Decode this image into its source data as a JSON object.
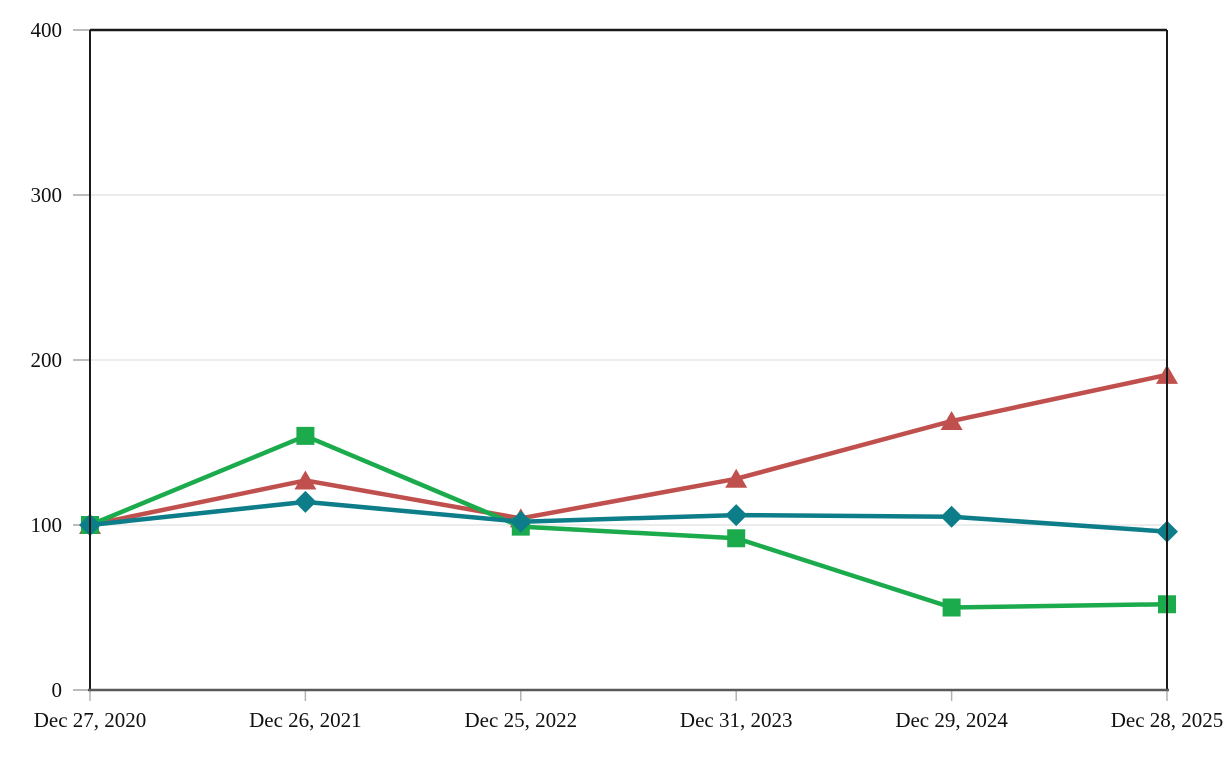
{
  "chart_data": {
    "type": "line",
    "title": "",
    "xlabel": "",
    "ylabel": "",
    "categories": [
      "Dec 27, 2020",
      "Dec 26, 2021",
      "Dec 25, 2022",
      "Dec 31, 2023",
      "Dec 29, 2024",
      "Dec 28, 2025"
    ],
    "series": [
      {
        "name": "red-triangle-series",
        "marker": "triangle",
        "color": "#c0504d",
        "values": [
          100,
          127,
          104,
          128,
          163,
          191
        ]
      },
      {
        "name": "green-square-series",
        "marker": "square",
        "color": "#1bab4d",
        "values": [
          100,
          154,
          99,
          92,
          50,
          52
        ]
      },
      {
        "name": "teal-diamond-series",
        "marker": "diamond",
        "color": "#0d7e89",
        "values": [
          100,
          114,
          102,
          106,
          105,
          96
        ]
      }
    ],
    "y_ticks": [
      0,
      100,
      200,
      300,
      400
    ],
    "y_tick_labels": [
      "0",
      "100",
      "200",
      "300",
      "400"
    ],
    "ylim": [
      0,
      400
    ],
    "grid": "horizontal-light",
    "legend": "none"
  },
  "style": {
    "background": "#ffffff",
    "grid_color": "#ececec",
    "plot_border_color": "#1a1a1a",
    "x_axis_line_color": "#595959",
    "y_tick_color": "#a6a6a6",
    "x_tick_color": "#b3b3b3",
    "text_color": "#111111"
  }
}
